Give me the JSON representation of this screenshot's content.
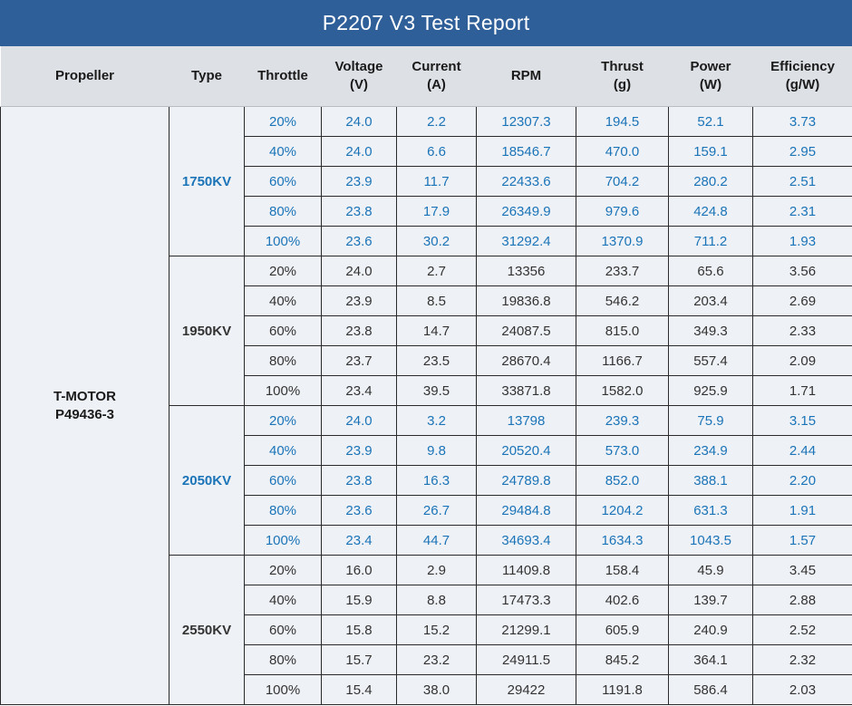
{
  "title": "P2207 V3 Test Report",
  "headers": [
    {
      "line1": "Propeller",
      "line2": ""
    },
    {
      "line1": "Type",
      "line2": ""
    },
    {
      "line1": "Throttle",
      "line2": ""
    },
    {
      "line1": "Voltage",
      "line2": "(V)"
    },
    {
      "line1": "Current",
      "line2": "(A)"
    },
    {
      "line1": "RPM",
      "line2": ""
    },
    {
      "line1": "Thrust",
      "line2": "(g)"
    },
    {
      "line1": "Power",
      "line2": "(W)"
    },
    {
      "line1": "Efficiency",
      "line2": "(g/W)"
    }
  ],
  "propeller": {
    "line1": "T-MOTOR",
    "line2": "P49436-3"
  },
  "colors": {
    "header_bg": "#2f5f98",
    "accent_blue": "#1b74b8",
    "dark_text": "#333333"
  },
  "groups": [
    {
      "type": "1750KV",
      "color": "blue",
      "rows": [
        {
          "throttle": "20%",
          "voltage": "24.0",
          "current": "2.2",
          "rpm": "12307.3",
          "thrust": "194.5",
          "power": "52.1",
          "efficiency": "3.73"
        },
        {
          "throttle": "40%",
          "voltage": "24.0",
          "current": "6.6",
          "rpm": "18546.7",
          "thrust": "470.0",
          "power": "159.1",
          "efficiency": "2.95"
        },
        {
          "throttle": "60%",
          "voltage": "23.9",
          "current": "11.7",
          "rpm": "22433.6",
          "thrust": "704.2",
          "power": "280.2",
          "efficiency": "2.51"
        },
        {
          "throttle": "80%",
          "voltage": "23.8",
          "current": "17.9",
          "rpm": "26349.9",
          "thrust": "979.6",
          "power": "424.8",
          "efficiency": "2.31"
        },
        {
          "throttle": "100%",
          "voltage": "23.6",
          "current": "30.2",
          "rpm": "31292.4",
          "thrust": "1370.9",
          "power": "711.2",
          "efficiency": "1.93"
        }
      ]
    },
    {
      "type": "1950KV",
      "color": "dark",
      "rows": [
        {
          "throttle": "20%",
          "voltage": "24.0",
          "current": "2.7",
          "rpm": "13356",
          "thrust": "233.7",
          "power": "65.6",
          "efficiency": "3.56"
        },
        {
          "throttle": "40%",
          "voltage": "23.9",
          "current": "8.5",
          "rpm": "19836.8",
          "thrust": "546.2",
          "power": "203.4",
          "efficiency": "2.69"
        },
        {
          "throttle": "60%",
          "voltage": "23.8",
          "current": "14.7",
          "rpm": "24087.5",
          "thrust": "815.0",
          "power": "349.3",
          "efficiency": "2.33"
        },
        {
          "throttle": "80%",
          "voltage": "23.7",
          "current": "23.5",
          "rpm": "28670.4",
          "thrust": "1166.7",
          "power": "557.4",
          "efficiency": "2.09"
        },
        {
          "throttle": "100%",
          "voltage": "23.4",
          "current": "39.5",
          "rpm": "33871.8",
          "thrust": "1582.0",
          "power": "925.9",
          "efficiency": "1.71"
        }
      ]
    },
    {
      "type": "2050KV",
      "color": "blue",
      "rows": [
        {
          "throttle": "20%",
          "voltage": "24.0",
          "current": "3.2",
          "rpm": "13798",
          "thrust": "239.3",
          "power": "75.9",
          "efficiency": "3.15"
        },
        {
          "throttle": "40%",
          "voltage": "23.9",
          "current": "9.8",
          "rpm": "20520.4",
          "thrust": "573.0",
          "power": "234.9",
          "efficiency": "2.44"
        },
        {
          "throttle": "60%",
          "voltage": "23.8",
          "current": "16.3",
          "rpm": "24789.8",
          "thrust": "852.0",
          "power": "388.1",
          "efficiency": "2.20"
        },
        {
          "throttle": "80%",
          "voltage": "23.6",
          "current": "26.7",
          "rpm": "29484.8",
          "thrust": "1204.2",
          "power": "631.3",
          "efficiency": "1.91"
        },
        {
          "throttle": "100%",
          "voltage": "23.4",
          "current": "44.7",
          "rpm": "34693.4",
          "thrust": "1634.3",
          "power": "1043.5",
          "efficiency": "1.57"
        }
      ]
    },
    {
      "type": "2550KV",
      "color": "dark",
      "rows": [
        {
          "throttle": "20%",
          "voltage": "16.0",
          "current": "2.9",
          "rpm": "11409.8",
          "thrust": "158.4",
          "power": "45.9",
          "efficiency": "3.45"
        },
        {
          "throttle": "40%",
          "voltage": "15.9",
          "current": "8.8",
          "rpm": "17473.3",
          "thrust": "402.6",
          "power": "139.7",
          "efficiency": "2.88"
        },
        {
          "throttle": "60%",
          "voltage": "15.8",
          "current": "15.2",
          "rpm": "21299.1",
          "thrust": "605.9",
          "power": "240.9",
          "efficiency": "2.52"
        },
        {
          "throttle": "80%",
          "voltage": "15.7",
          "current": "23.2",
          "rpm": "24911.5",
          "thrust": "845.2",
          "power": "364.1",
          "efficiency": "2.32"
        },
        {
          "throttle": "100%",
          "voltage": "15.4",
          "current": "38.0",
          "rpm": "29422",
          "thrust": "1191.8",
          "power": "586.4",
          "efficiency": "2.03"
        }
      ]
    }
  ]
}
